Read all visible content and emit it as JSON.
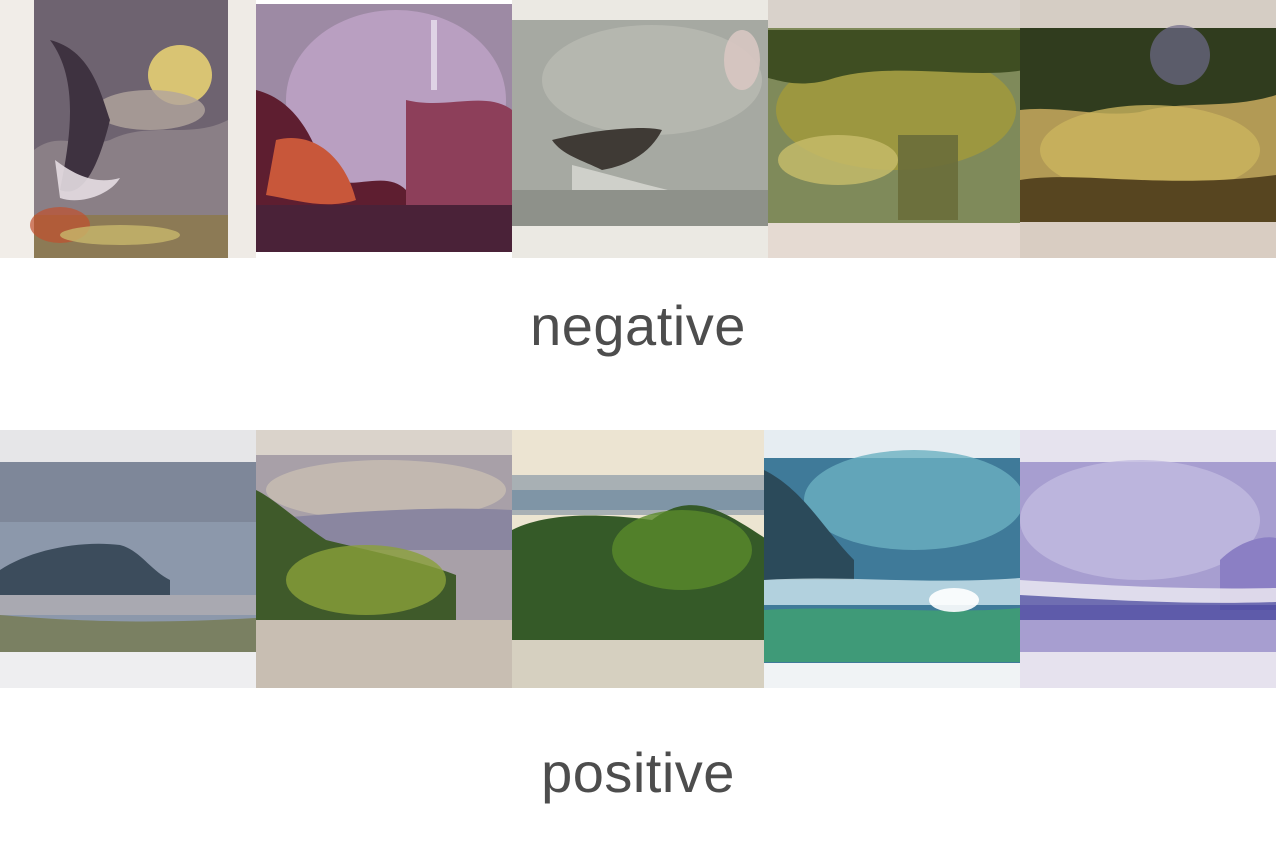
{
  "rows": [
    {
      "label": "negative",
      "paintings": [
        {
          "colors": [
            "#f1ede8",
            "#6e6370",
            "#d9c473",
            "#3e3240",
            "#b1a59e",
            "#9a8e8c",
            "#c8b86b"
          ]
        },
        {
          "colors": [
            "#ffffff",
            "#9d8aa4",
            "#c0a4c8",
            "#5e1e30",
            "#c8573a",
            "#4a2238",
            "#8d3f5a"
          ]
        },
        {
          "colors": [
            "#ebe9e3",
            "#a6a9a2",
            "#b7b8b0",
            "#3f3a35",
            "#d4d4ce",
            "#8e918a",
            "#e9e7e1"
          ]
        },
        {
          "colors": [
            "#d9d2cb",
            "#7f8a5a",
            "#a49a3a",
            "#3f4e22",
            "#c8bd6a",
            "#6a6d3a",
            "#ece4de"
          ]
        },
        {
          "colors": [
            "#d5cdc4",
            "#b29a55",
            "#303c1e",
            "#8a6a3a",
            "#cbb45e",
            "#574520",
            "#e2d8d0"
          ]
        }
      ]
    },
    {
      "label": "positive",
      "paintings": [
        {
          "colors": [
            "#e6e6e8",
            "#8c98ab",
            "#7e8799",
            "#3c4c5c",
            "#a9a9b1",
            "#7a8062",
            "#eeeef0"
          ]
        },
        {
          "colors": [
            "#dad3cb",
            "#a8a0a8",
            "#8a86a0",
            "#3f5a2a",
            "#8aa03a",
            "#c8beb2",
            "#ebe3db"
          ]
        },
        {
          "colors": [
            "#ece4d2",
            "#a8b0b4",
            "#6e8aa0",
            "#355a28",
            "#5a8a2a",
            "#d6d0c0",
            "#ece5d1"
          ]
        },
        {
          "colors": [
            "#e6edf2",
            "#3f7a99",
            "#6bb0c0",
            "#2b4a5a",
            "#cfe7ef",
            "#3f9a78",
            "#f0f3f5"
          ]
        },
        {
          "colors": [
            "#e6e3ee",
            "#a79ed0",
            "#c2bae0",
            "#3e3f9a",
            "#8b7fc4",
            "#e6e2ee",
            "#dcd6ea"
          ]
        }
      ]
    }
  ]
}
